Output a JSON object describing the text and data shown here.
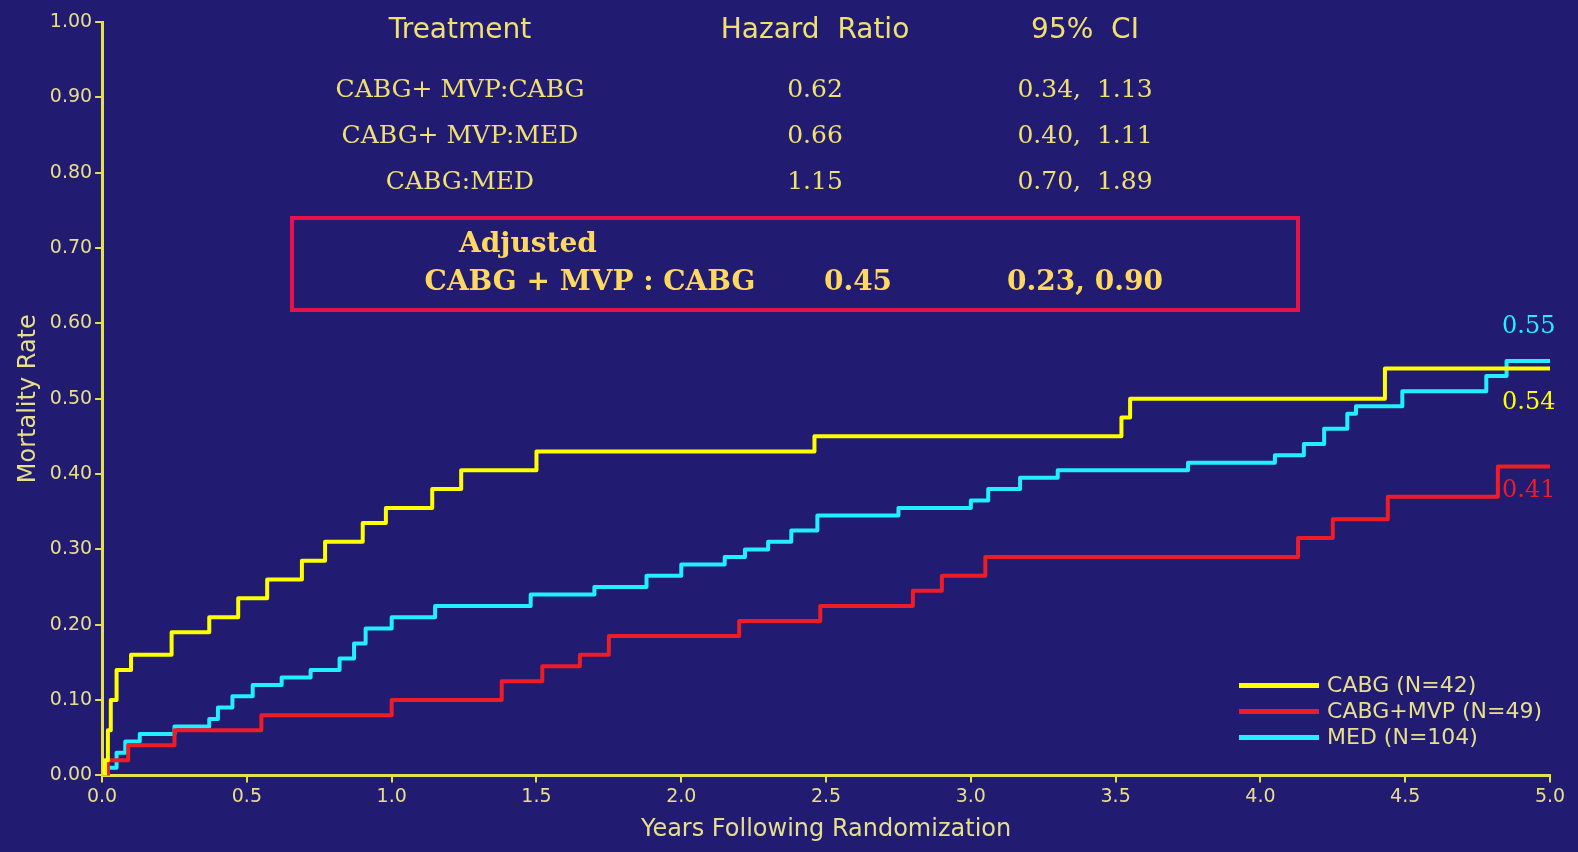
{
  "chart_data": {
    "type": "step",
    "xlabel": "Years Following Randomization",
    "ylabel": "Mortality Rate",
    "xlim": [
      0,
      5
    ],
    "ylim": [
      0,
      1
    ],
    "xticks": [
      {
        "value": 0,
        "label": "0.0"
      },
      {
        "value": 0.5,
        "label": "0.5"
      },
      {
        "value": 1,
        "label": "1.0"
      },
      {
        "value": 1.5,
        "label": "1.5"
      },
      {
        "value": 2,
        "label": "2.0"
      },
      {
        "value": 2.5,
        "label": "2.5"
      },
      {
        "value": 3,
        "label": "3.0"
      },
      {
        "value": 3.5,
        "label": "3.5"
      },
      {
        "value": 4,
        "label": "4.0"
      },
      {
        "value": 4.5,
        "label": "4.5"
      },
      {
        "value": 5,
        "label": "5.0"
      }
    ],
    "yticks": [
      {
        "value": 0,
        "label": "0.00"
      },
      {
        "value": 0.1,
        "label": "0.10"
      },
      {
        "value": 0.2,
        "label": "0.20"
      },
      {
        "value": 0.3,
        "label": "0.30"
      },
      {
        "value": 0.4,
        "label": "0.40"
      },
      {
        "value": 0.5,
        "label": "0.50"
      },
      {
        "value": 0.6,
        "label": "0.60"
      },
      {
        "value": 0.7,
        "label": "0.70"
      },
      {
        "value": 0.8,
        "label": "0.80"
      },
      {
        "value": 0.9,
        "label": "0.90"
      },
      {
        "value": 1,
        "label": "1.00"
      }
    ],
    "grid": false,
    "legend": "bottom right",
    "line_style": "solid",
    "marker": "none",
    "series": [
      {
        "name": "CABG (N=42)",
        "color": "#ffff00",
        "x": [
          0,
          0.01,
          0.02,
          0.03,
          0.05,
          0.1,
          0.24,
          0.37,
          0.47,
          0.57,
          0.69,
          0.77,
          0.9,
          0.98,
          1.14,
          1.24,
          1.5,
          2.46,
          3.52,
          3.55,
          4.43,
          5
        ],
        "values": [
          0,
          0.02,
          0.06,
          0.1,
          0.14,
          0.16,
          0.19,
          0.21,
          0.235,
          0.26,
          0.285,
          0.31,
          0.335,
          0.355,
          0.38,
          0.405,
          0.43,
          0.45,
          0.475,
          0.5,
          0.54,
          0.54
        ],
        "value_labels": [
          null,
          null,
          null,
          null,
          null,
          null,
          null,
          null,
          null,
          null,
          null,
          null,
          null,
          null,
          null,
          null,
          null,
          null,
          null,
          null,
          null,
          "0.54"
        ]
      },
      {
        "name": "CABG+MVP (N=49)",
        "color": "#ee1c25",
        "x": [
          0,
          0.02,
          0.09,
          0.25,
          0.55,
          1,
          1.38,
          1.52,
          1.65,
          1.75,
          2.2,
          2.48,
          2.8,
          2.9,
          3.05,
          4.13,
          4.25,
          4.44,
          4.82,
          5
        ],
        "values": [
          0,
          0.02,
          0.04,
          0.06,
          0.08,
          0.1,
          0.125,
          0.145,
          0.16,
          0.185,
          0.205,
          0.225,
          0.245,
          0.265,
          0.29,
          0.315,
          0.34,
          0.37,
          0.41,
          0.41
        ],
        "value_labels": [
          null,
          null,
          null,
          null,
          null,
          null,
          null,
          null,
          null,
          null,
          null,
          null,
          null,
          null,
          null,
          null,
          null,
          null,
          null,
          "0.41"
        ]
      },
      {
        "name": "MED (N=104)",
        "color": "#22eeff",
        "x": [
          0,
          0.02,
          0.05,
          0.08,
          0.13,
          0.25,
          0.37,
          0.4,
          0.45,
          0.52,
          0.62,
          0.72,
          0.82,
          0.87,
          0.91,
          1,
          1.15,
          1.48,
          1.7,
          1.88,
          2,
          2.15,
          2.22,
          2.3,
          2.38,
          2.47,
          2.75,
          3,
          3.06,
          3.17,
          3.3,
          3.75,
          4.05,
          4.15,
          4.22,
          4.3,
          4.33,
          4.49,
          4.78,
          4.85,
          5
        ],
        "values": [
          0,
          0.01,
          0.03,
          0.045,
          0.055,
          0.065,
          0.075,
          0.09,
          0.105,
          0.12,
          0.13,
          0.14,
          0.155,
          0.175,
          0.195,
          0.21,
          0.225,
          0.24,
          0.25,
          0.265,
          0.28,
          0.29,
          0.3,
          0.31,
          0.325,
          0.345,
          0.355,
          0.365,
          0.38,
          0.395,
          0.405,
          0.415,
          0.425,
          0.44,
          0.46,
          0.48,
          0.49,
          0.51,
          0.53,
          0.55,
          0.55
        ],
        "value_labels": [
          null,
          null,
          null,
          null,
          null,
          null,
          null,
          null,
          null,
          null,
          null,
          null,
          null,
          null,
          null,
          null,
          null,
          null,
          null,
          null,
          null,
          null,
          null,
          null,
          null,
          null,
          null,
          null,
          null,
          null,
          null,
          null,
          null,
          null,
          null,
          null,
          null,
          null,
          null,
          null,
          "0.55"
        ]
      }
    ],
    "annotations": [
      "Treatment",
      "Hazard  Ratio",
      "95%  CI",
      "CABG+ MVP:CABG",
      "0.62",
      "0.34,  1.13",
      "CABG+ MVP:MED",
      "0.66",
      "0.40,  1.11",
      "CABG:MED",
      "1.15",
      "0.70,  1.89",
      "Adjusted",
      "CABG + MVP : CABG",
      "0.45",
      "0.23, 0.90"
    ]
  }
}
